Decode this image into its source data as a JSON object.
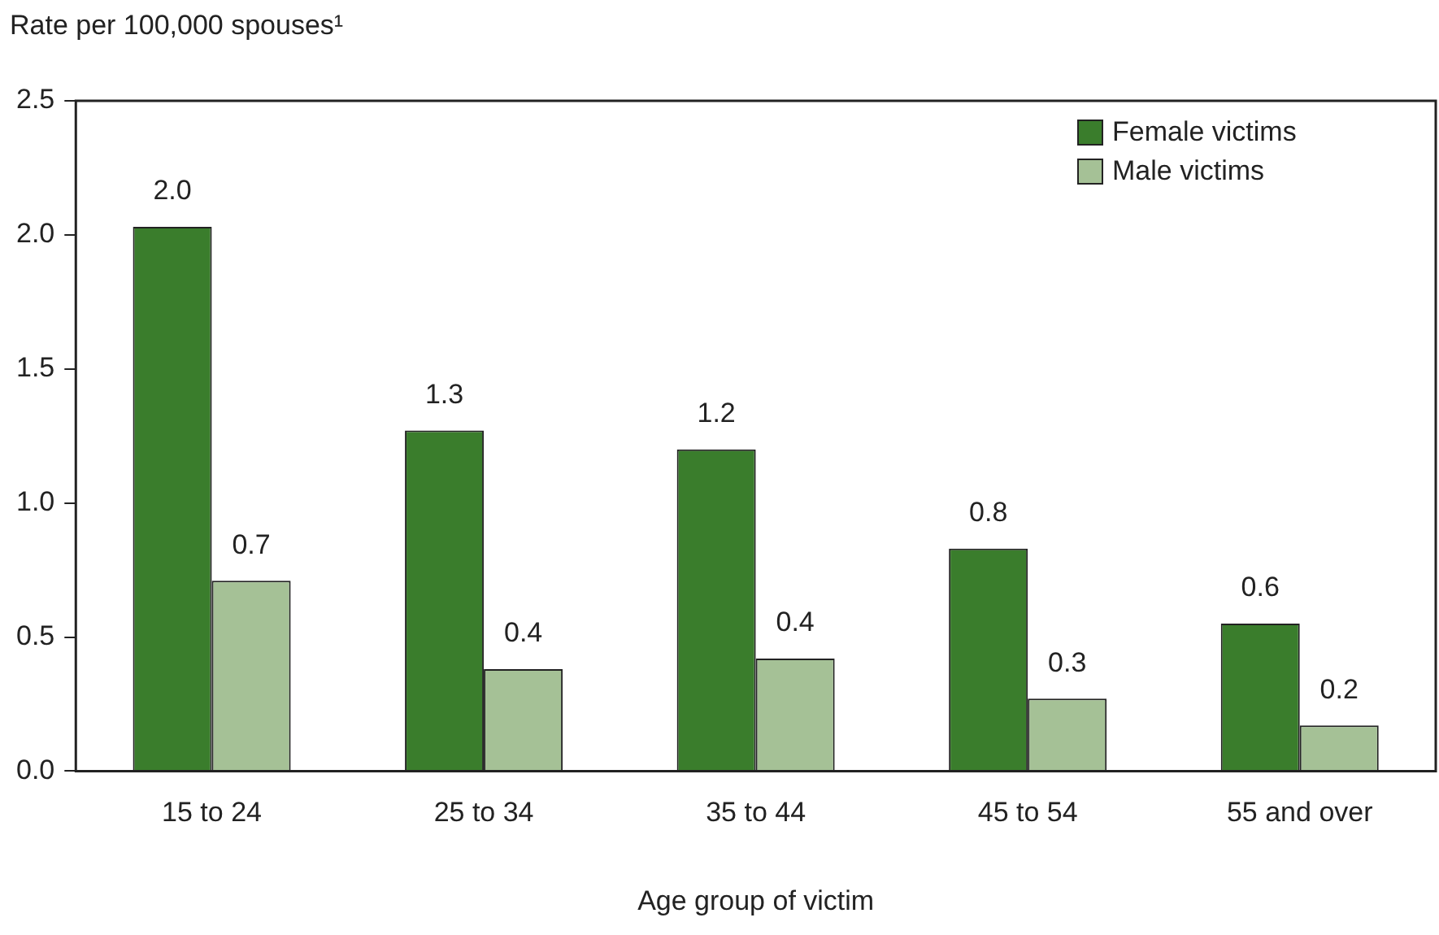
{
  "chart_data": {
    "type": "bar",
    "ylabel": "Rate per 100,000 spouses¹",
    "xlabel": "Age group of victim",
    "categories": [
      "15 to 24",
      "25 to 34",
      "35 to 44",
      "45 to 54",
      "55 and over"
    ],
    "series": [
      {
        "name": "Female victims",
        "color": "#3a7d2c",
        "values": [
          2.03,
          1.27,
          1.2,
          0.83,
          0.55
        ],
        "value_labels": [
          "2.0",
          "1.3",
          "1.2",
          "0.8",
          "0.6"
        ]
      },
      {
        "name": "Male victims",
        "color": "#a5c196",
        "values": [
          0.71,
          0.38,
          0.42,
          0.27,
          0.17
        ],
        "value_labels": [
          "0.7",
          "0.4",
          "0.4",
          "0.3",
          "0.2"
        ]
      }
    ],
    "ylim": [
      0,
      2.5
    ],
    "yticks": [
      {
        "value": 0,
        "label": "0.0"
      },
      0.5,
      {
        "value": 1,
        "label": "1.0"
      },
      1.5,
      {
        "value": 2,
        "label": "2.0"
      },
      2.5
    ],
    "grid": false,
    "legend": "top right"
  }
}
